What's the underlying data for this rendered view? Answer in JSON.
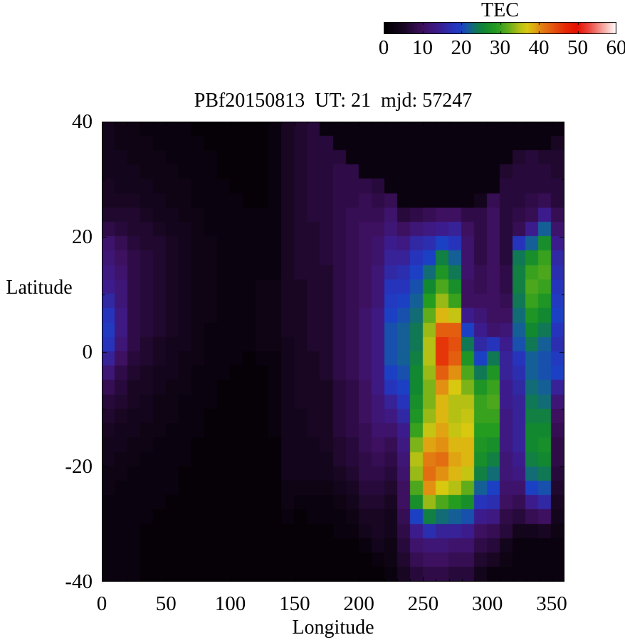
{
  "figure": {
    "background": "#ffffff",
    "text_color": "#000000"
  },
  "title": {
    "text": "PBf20150813  UT: 21  mjd: 57247"
  },
  "colorbar": {
    "title": "TEC",
    "min": 0,
    "max": 60,
    "tick_step": 10,
    "tick_labels": [
      "0",
      "10",
      "20",
      "30",
      "40",
      "50",
      "60"
    ],
    "palette_stops": [
      [
        0,
        0,
        0,
        0
      ],
      [
        5,
        24,
        6,
        34
      ],
      [
        10,
        62,
        16,
        96
      ],
      [
        14,
        60,
        28,
        140
      ],
      [
        18,
        38,
        52,
        188
      ],
      [
        20,
        28,
        64,
        196
      ],
      [
        22,
        20,
        96,
        150
      ],
      [
        24,
        16,
        120,
        84
      ],
      [
        26,
        18,
        136,
        48
      ],
      [
        29,
        36,
        156,
        32
      ],
      [
        32,
        96,
        172,
        26
      ],
      [
        35,
        180,
        192,
        20
      ],
      [
        37,
        216,
        200,
        16
      ],
      [
        39,
        224,
        164,
        18
      ],
      [
        41,
        226,
        124,
        18
      ],
      [
        44,
        228,
        80,
        14
      ],
      [
        47,
        230,
        40,
        6
      ],
      [
        50,
        230,
        16,
        0
      ],
      [
        53,
        236,
        72,
        64
      ],
      [
        56,
        244,
        150,
        144
      ],
      [
        58,
        250,
        200,
        196
      ],
      [
        60,
        255,
        255,
        255
      ]
    ]
  },
  "axes": {
    "x": {
      "label": "Longitude",
      "min": 0,
      "max": 360,
      "major_tick_step": 50,
      "minor_tick_step": 10,
      "tick_values": [
        0,
        50,
        100,
        150,
        200,
        250,
        300,
        350
      ],
      "tick_labels": [
        "0",
        "50",
        "100",
        "150",
        "200",
        "250",
        "300",
        "350"
      ]
    },
    "y": {
      "label": "Latitude",
      "min": -40,
      "max": 40,
      "major_tick_step": 20,
      "minor_tick_step": 10,
      "tick_values": [
        40,
        20,
        0,
        -20,
        -40
      ],
      "tick_labels": [
        "40",
        "20",
        "0",
        "-20",
        "-40"
      ]
    }
  },
  "chart_data": {
    "type": "heatmap",
    "title": "PBf20150813  UT: 21  mjd: 57247",
    "xlabel": "Longitude",
    "ylabel": "Latitude",
    "zlabel": "TEC",
    "x_range": [
      0,
      360
    ],
    "y_range": [
      -40,
      40
    ],
    "z_range": [
      0,
      60
    ],
    "lon_step": 10,
    "lat_step": 2.5,
    "grid_order": "rows are latitude bands from +40 (top) to -40 (bottom), columns are longitude 0 to 360",
    "grid": [
      [
        4,
        3,
        3,
        2,
        2,
        2,
        2,
        1,
        1,
        1,
        1,
        1,
        1,
        2,
        5,
        6,
        7,
        2,
        2,
        2,
        2,
        2,
        2,
        2,
        2,
        2,
        2,
        2,
        2,
        2,
        2,
        2,
        2,
        2,
        2,
        2
      ],
      [
        4,
        3,
        3,
        3,
        2,
        2,
        2,
        2,
        1,
        1,
        1,
        1,
        1,
        2,
        5,
        6,
        7,
        7,
        2,
        2,
        2,
        2,
        2,
        2,
        2,
        2,
        2,
        2,
        2,
        2,
        2,
        2,
        2,
        2,
        2,
        5
      ],
      [
        4,
        4,
        3,
        3,
        3,
        2,
        2,
        2,
        2,
        1,
        1,
        1,
        1,
        2,
        5,
        6,
        7,
        7,
        7,
        2,
        2,
        2,
        2,
        2,
        2,
        2,
        2,
        2,
        2,
        2,
        2,
        2,
        6,
        7,
        6,
        6
      ],
      [
        4,
        4,
        4,
        3,
        3,
        3,
        2,
        2,
        2,
        1,
        1,
        1,
        1,
        2,
        5,
        6,
        7,
        7,
        8,
        8,
        2,
        2,
        2,
        2,
        2,
        2,
        2,
        2,
        2,
        2,
        2,
        6,
        7,
        7,
        7,
        6
      ],
      [
        5,
        4,
        4,
        4,
        3,
        3,
        3,
        2,
        2,
        2,
        1,
        1,
        1,
        2,
        5,
        6,
        7,
        7,
        8,
        8,
        8,
        7,
        2,
        2,
        2,
        2,
        2,
        2,
        2,
        2,
        2,
        7,
        7,
        7,
        7,
        7
      ],
      [
        5,
        5,
        5,
        4,
        4,
        3,
        3,
        2,
        2,
        2,
        2,
        1,
        1,
        2,
        5,
        6,
        7,
        7,
        8,
        8,
        9,
        8,
        9,
        2,
        2,
        2,
        2,
        2,
        2,
        4,
        9,
        7,
        7,
        8,
        9,
        7
      ],
      [
        6,
        6,
        6,
        5,
        4,
        4,
        3,
        3,
        2,
        2,
        2,
        2,
        2,
        2,
        5,
        6,
        7,
        7,
        8,
        9,
        9,
        9,
        11,
        7,
        8,
        9,
        10,
        10,
        8,
        8,
        10,
        7,
        8,
        9,
        14,
        9
      ],
      [
        8,
        7,
        6,
        6,
        5,
        4,
        4,
        3,
        2,
        2,
        2,
        2,
        2,
        2,
        5,
        6,
        6,
        7,
        8,
        9,
        10,
        10,
        12,
        10,
        12,
        13,
        14,
        15,
        10,
        8,
        10,
        7,
        9,
        14,
        22,
        11
      ],
      [
        11,
        9,
        7,
        6,
        6,
        5,
        4,
        3,
        3,
        2,
        2,
        2,
        2,
        2,
        5,
        6,
        6,
        7,
        8,
        9,
        10,
        11,
        14,
        13,
        16,
        17,
        20,
        18,
        11,
        8,
        10,
        7,
        18,
        22,
        27,
        14
      ],
      [
        12,
        10,
        8,
        7,
        6,
        5,
        4,
        3,
        3,
        2,
        2,
        2,
        2,
        2,
        5,
        6,
        6,
        7,
        8,
        9,
        10,
        11,
        15,
        15,
        18,
        20,
        25,
        22,
        11,
        8,
        10,
        7,
        24,
        27,
        30,
        16
      ],
      [
        13,
        11,
        8,
        7,
        6,
        5,
        4,
        3,
        3,
        2,
        2,
        2,
        2,
        2,
        5,
        6,
        6,
        6,
        8,
        9,
        10,
        12,
        16,
        17,
        20,
        23,
        28,
        24,
        11,
        9,
        10,
        8,
        25,
        30,
        31,
        17
      ],
      [
        14,
        12,
        8,
        7,
        6,
        5,
        4,
        3,
        3,
        2,
        2,
        2,
        3,
        3,
        5,
        5,
        6,
        6,
        8,
        9,
        10,
        12,
        18,
        18,
        21,
        26,
        31,
        27,
        10,
        9,
        10,
        8,
        25,
        31,
        30,
        18
      ],
      [
        16,
        12,
        8,
        7,
        6,
        5,
        4,
        3,
        3,
        2,
        2,
        2,
        3,
        3,
        5,
        5,
        6,
        6,
        8,
        9,
        10,
        12,
        19,
        20,
        22,
        29,
        34,
        30,
        10,
        10,
        10,
        9,
        24,
        30,
        28,
        19
      ],
      [
        18,
        13,
        8,
        7,
        6,
        5,
        4,
        3,
        3,
        2,
        2,
        2,
        3,
        3,
        5,
        5,
        6,
        6,
        8,
        9,
        11,
        13,
        20,
        21,
        23,
        32,
        38,
        36,
        14,
        12,
        10,
        10,
        23,
        28,
        26,
        20
      ],
      [
        19,
        13,
        8,
        7,
        6,
        5,
        4,
        3,
        2,
        2,
        2,
        2,
        3,
        3,
        5,
        5,
        6,
        6,
        8,
        9,
        11,
        13,
        21,
        22,
        24,
        34,
        43,
        43,
        20,
        14,
        11,
        12,
        22,
        26,
        24,
        18
      ],
      [
        18,
        12,
        8,
        6,
        5,
        4,
        4,
        3,
        2,
        2,
        2,
        2,
        3,
        3,
        4,
        5,
        6,
        6,
        8,
        9,
        11,
        13,
        21,
        22,
        24,
        35,
        46,
        44,
        24,
        16,
        18,
        14,
        21,
        24,
        22,
        17
      ],
      [
        15,
        10,
        7,
        6,
        5,
        4,
        3,
        3,
        2,
        2,
        2,
        1,
        2,
        2,
        4,
        5,
        5,
        6,
        8,
        9,
        11,
        13,
        21,
        22,
        25,
        35,
        46,
        43,
        28,
        20,
        24,
        15,
        18,
        22,
        21,
        19
      ],
      [
        12,
        8,
        6,
        5,
        4,
        4,
        3,
        2,
        2,
        2,
        1,
        1,
        1,
        2,
        4,
        5,
        5,
        6,
        8,
        9,
        11,
        13,
        20,
        21,
        26,
        34,
        43,
        40,
        31,
        24,
        28,
        15,
        17,
        22,
        21,
        20
      ],
      [
        9,
        7,
        5,
        5,
        4,
        3,
        3,
        2,
        2,
        1,
        1,
        1,
        1,
        2,
        4,
        5,
        5,
        5,
        7,
        8,
        10,
        13,
        18,
        20,
        26,
        33,
        40,
        37,
        33,
        28,
        30,
        14,
        16,
        23,
        22,
        15
      ],
      [
        7,
        6,
        5,
        4,
        3,
        3,
        2,
        2,
        2,
        1,
        1,
        1,
        1,
        2,
        4,
        5,
        5,
        5,
        7,
        8,
        10,
        12,
        15,
        18,
        27,
        33,
        38,
        35,
        35,
        30,
        31,
        14,
        15,
        24,
        23,
        12
      ],
      [
        6,
        5,
        4,
        4,
        3,
        3,
        2,
        2,
        1,
        1,
        1,
        1,
        1,
        2,
        4,
        4,
        5,
        5,
        7,
        8,
        10,
        12,
        13,
        16,
        28,
        34,
        38,
        35,
        36,
        30,
        30,
        13,
        15,
        25,
        25,
        10
      ],
      [
        5,
        4,
        4,
        3,
        3,
        2,
        2,
        2,
        1,
        1,
        1,
        1,
        1,
        2,
        4,
        4,
        5,
        5,
        7,
        8,
        9,
        11,
        11,
        14,
        30,
        36,
        39,
        36,
        37,
        29,
        29,
        13,
        15,
        26,
        26,
        9
      ],
      [
        4,
        4,
        3,
        3,
        2,
        2,
        2,
        1,
        1,
        1,
        1,
        1,
        1,
        1,
        4,
        4,
        4,
        5,
        6,
        7,
        9,
        10,
        9,
        13,
        33,
        39,
        40,
        38,
        38,
        28,
        27,
        13,
        15,
        26,
        27,
        8
      ],
      [
        4,
        3,
        3,
        2,
        2,
        2,
        2,
        1,
        1,
        1,
        1,
        1,
        1,
        1,
        4,
        4,
        4,
        4,
        6,
        7,
        8,
        9,
        8,
        12,
        35,
        41,
        42,
        39,
        38,
        27,
        25,
        12,
        14,
        25,
        26,
        8
      ],
      [
        3,
        3,
        2,
        2,
        2,
        2,
        1,
        1,
        1,
        1,
        1,
        1,
        1,
        1,
        4,
        4,
        4,
        4,
        5,
        6,
        8,
        8,
        7,
        11,
        34,
        42,
        40,
        38,
        36,
        25,
        23,
        12,
        13,
        23,
        24,
        7
      ],
      [
        3,
        2,
        2,
        2,
        2,
        2,
        1,
        1,
        1,
        1,
        1,
        1,
        1,
        1,
        3,
        3,
        3,
        3,
        4,
        5,
        7,
        7,
        6,
        10,
        31,
        40,
        37,
        35,
        32,
        22,
        20,
        11,
        11,
        20,
        21,
        6
      ],
      [
        2,
        2,
        2,
        2,
        2,
        1,
        1,
        1,
        1,
        1,
        1,
        1,
        1,
        1,
        3,
        2,
        2,
        2,
        3,
        4,
        6,
        6,
        5,
        10,
        27,
        34,
        31,
        29,
        27,
        18,
        17,
        10,
        9,
        14,
        16,
        5
      ],
      [
        2,
        2,
        2,
        2,
        1,
        1,
        1,
        1,
        1,
        1,
        1,
        1,
        1,
        1,
        2,
        1,
        2,
        2,
        2,
        3,
        5,
        5,
        4,
        9,
        20,
        25,
        23,
        22,
        21,
        14,
        13,
        8,
        7,
        9,
        10,
        4
      ],
      [
        2,
        2,
        2,
        1,
        1,
        1,
        1,
        1,
        1,
        1,
        1,
        1,
        1,
        1,
        1,
        1,
        1,
        1,
        2,
        2,
        4,
        5,
        4,
        8,
        14,
        17,
        15,
        15,
        14,
        10,
        9,
        7,
        4,
        4,
        5,
        3
      ],
      [
        2,
        2,
        2,
        1,
        1,
        1,
        1,
        1,
        1,
        1,
        1,
        1,
        1,
        1,
        1,
        1,
        1,
        1,
        1,
        1,
        2,
        4,
        3,
        7,
        11,
        12,
        12,
        11,
        11,
        8,
        7,
        4,
        2,
        2,
        2,
        2
      ],
      [
        2,
        2,
        2,
        1,
        1,
        1,
        1,
        1,
        1,
        1,
        1,
        1,
        1,
        1,
        1,
        1,
        1,
        1,
        1,
        1,
        1,
        2,
        3,
        6,
        9,
        10,
        10,
        9,
        9,
        6,
        5,
        3,
        2,
        2,
        2,
        2
      ],
      [
        2,
        2,
        2,
        1,
        1,
        1,
        1,
        1,
        1,
        1,
        1,
        1,
        1,
        1,
        1,
        1,
        1,
        1,
        1,
        1,
        1,
        1,
        2,
        5,
        7,
        8,
        8,
        7,
        7,
        4,
        2,
        2,
        2,
        2,
        2,
        2
      ]
    ]
  }
}
